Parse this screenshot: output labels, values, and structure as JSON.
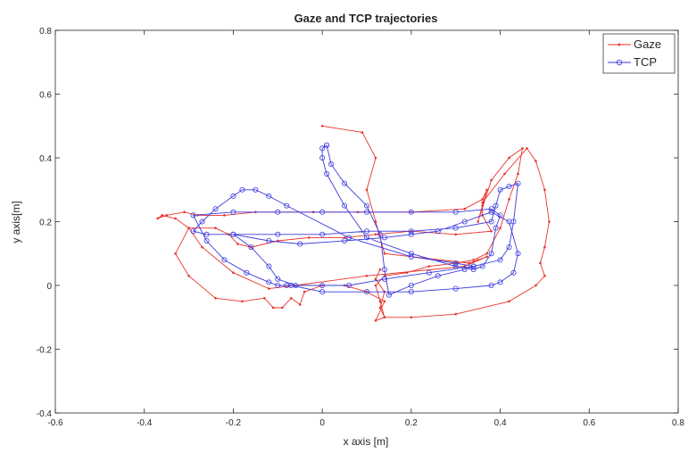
{
  "chart_data": {
    "type": "line",
    "title": "Gaze and TCP trajectories",
    "xlabel": "x axis [m]",
    "ylabel": "y axis[m]",
    "xlim": [
      -0.6,
      0.8
    ],
    "ylim": [
      -0.4,
      0.8
    ],
    "xticks": [
      -0.6,
      -0.4,
      -0.2,
      0,
      0.2,
      0.4,
      0.6,
      0.8
    ],
    "xtick_labels": [
      "-0.6",
      "-0.4",
      "-0.2",
      "0",
      "0.2",
      "0.4",
      "0.6",
      "0.8"
    ],
    "yticks": [
      -0.4,
      -0.2,
      0,
      0.2,
      0.4,
      0.6,
      0.8
    ],
    "ytick_labels": [
      "-0.4",
      "-0.2",
      "0",
      "0.2",
      "0.4",
      "0.6",
      "0.8"
    ],
    "grid": false,
    "legend": {
      "position": "top-right"
    },
    "series": [
      {
        "name": "Gaze",
        "color": "#e8332a",
        "marker": "dot",
        "x": [
          0.0,
          0.09,
          0.12,
          0.1,
          0.12,
          0.14,
          0.33,
          0.35,
          0.37,
          0.32,
          0.1,
          -0.06,
          -0.12,
          -0.2,
          -0.27,
          -0.3,
          -0.33,
          -0.36,
          -0.37,
          -0.35,
          -0.31,
          -0.28,
          -0.22,
          -0.15,
          -0.02,
          0.08,
          0.2,
          0.32,
          0.36,
          0.37,
          0.36,
          0.35,
          0.38,
          0.42,
          0.45,
          0.44,
          0.42,
          0.4,
          0.37,
          0.34,
          0.3,
          0.24,
          0.19,
          0.14,
          0.12,
          0.13,
          0.14,
          0.12,
          0.14,
          0.1,
          0.05,
          0.0,
          -0.04,
          -0.05,
          -0.07,
          -0.09,
          -0.11,
          -0.13,
          -0.18,
          -0.24,
          -0.3,
          -0.33,
          -0.3,
          -0.24,
          -0.21,
          -0.19,
          -0.16,
          -0.1,
          -0.03,
          0.05,
          0.12,
          0.2,
          0.3,
          0.38,
          0.36,
          0.36,
          0.41,
          0.46,
          0.48,
          0.5,
          0.51,
          0.5,
          0.49,
          0.5,
          0.48,
          0.42,
          0.3,
          0.2,
          0.14,
          0.13,
          0.14,
          0.12,
          0.13
        ],
        "y": [
          0.5,
          0.48,
          0.4,
          0.3,
          0.2,
          0.1,
          0.07,
          0.08,
          0.09,
          0.06,
          0.03,
          0.0,
          -0.01,
          0.04,
          0.12,
          0.18,
          0.21,
          0.22,
          0.21,
          0.22,
          0.23,
          0.22,
          0.22,
          0.23,
          0.23,
          0.23,
          0.23,
          0.24,
          0.27,
          0.3,
          0.25,
          0.2,
          0.33,
          0.4,
          0.43,
          0.35,
          0.27,
          0.18,
          0.1,
          0.08,
          0.07,
          0.06,
          0.04,
          0.03,
          0.0,
          -0.05,
          -0.1,
          -0.11,
          -0.05,
          -0.02,
          0.0,
          0.0,
          -0.02,
          -0.06,
          -0.04,
          -0.07,
          -0.07,
          -0.04,
          -0.05,
          -0.04,
          0.03,
          0.1,
          0.18,
          0.18,
          0.16,
          0.13,
          0.12,
          0.14,
          0.15,
          0.15,
          0.16,
          0.17,
          0.16,
          0.17,
          0.22,
          0.26,
          0.35,
          0.43,
          0.39,
          0.3,
          0.2,
          0.12,
          0.07,
          0.03,
          0.0,
          -0.05,
          -0.09,
          -0.1,
          -0.1,
          -0.07,
          -0.02,
          0.02,
          0.05
        ]
      },
      {
        "name": "TCP",
        "color": "#3a3ae0",
        "marker": "circle",
        "x": [
          0.01,
          0.02,
          0.05,
          0.1,
          0.13,
          0.14,
          0.15,
          0.2,
          0.26,
          0.32,
          0.34,
          0.3,
          0.2,
          0.06,
          -0.08,
          -0.12,
          -0.15,
          -0.18,
          -0.2,
          -0.24,
          -0.27,
          -0.29,
          -0.26,
          -0.2,
          -0.1,
          0.0,
          0.1,
          0.2,
          0.3,
          0.38,
          0.39,
          0.4,
          0.42,
          0.44,
          0.43,
          0.42,
          0.4,
          0.34,
          0.24,
          0.14,
          0.06,
          0.0,
          -0.06,
          -0.1,
          -0.12,
          -0.16,
          -0.2,
          -0.12,
          -0.05,
          0.05,
          0.14,
          0.2,
          0.26,
          0.32,
          0.38,
          0.42,
          0.44,
          0.43,
          0.4,
          0.38,
          0.3,
          0.2,
          0.1,
          0.0,
          -0.07,
          -0.08,
          -0.1,
          -0.12,
          -0.17,
          -0.22,
          -0.26,
          -0.29,
          -0.2,
          -0.1,
          0.0,
          0.1,
          0.2,
          0.3,
          0.38,
          0.4,
          0.39,
          0.38,
          0.36,
          0.34,
          0.3,
          0.2,
          0.1,
          0.05,
          0.01,
          0.0,
          0.0,
          0.01
        ],
        "y": [
          0.44,
          0.38,
          0.32,
          0.25,
          0.16,
          0.05,
          -0.03,
          0.0,
          0.03,
          0.05,
          0.06,
          0.07,
          0.09,
          0.15,
          0.25,
          0.28,
          0.3,
          0.3,
          0.28,
          0.24,
          0.2,
          0.17,
          0.16,
          0.16,
          0.16,
          0.16,
          0.17,
          0.17,
          0.18,
          0.2,
          0.25,
          0.3,
          0.31,
          0.32,
          0.2,
          0.12,
          0.08,
          0.06,
          0.04,
          0.02,
          0.0,
          0.0,
          0.0,
          0.02,
          0.06,
          0.12,
          0.16,
          0.14,
          0.13,
          0.14,
          0.15,
          0.16,
          0.17,
          0.2,
          0.23,
          0.2,
          0.1,
          0.04,
          0.01,
          0.0,
          -0.01,
          -0.02,
          -0.02,
          -0.02,
          0.0,
          0.0,
          0.0,
          0.01,
          0.04,
          0.08,
          0.14,
          0.22,
          0.23,
          0.23,
          0.23,
          0.23,
          0.23,
          0.23,
          0.24,
          0.22,
          0.18,
          0.1,
          0.06,
          0.05,
          0.06,
          0.1,
          0.15,
          0.25,
          0.35,
          0.4,
          0.43,
          0.44
        ]
      }
    ]
  }
}
